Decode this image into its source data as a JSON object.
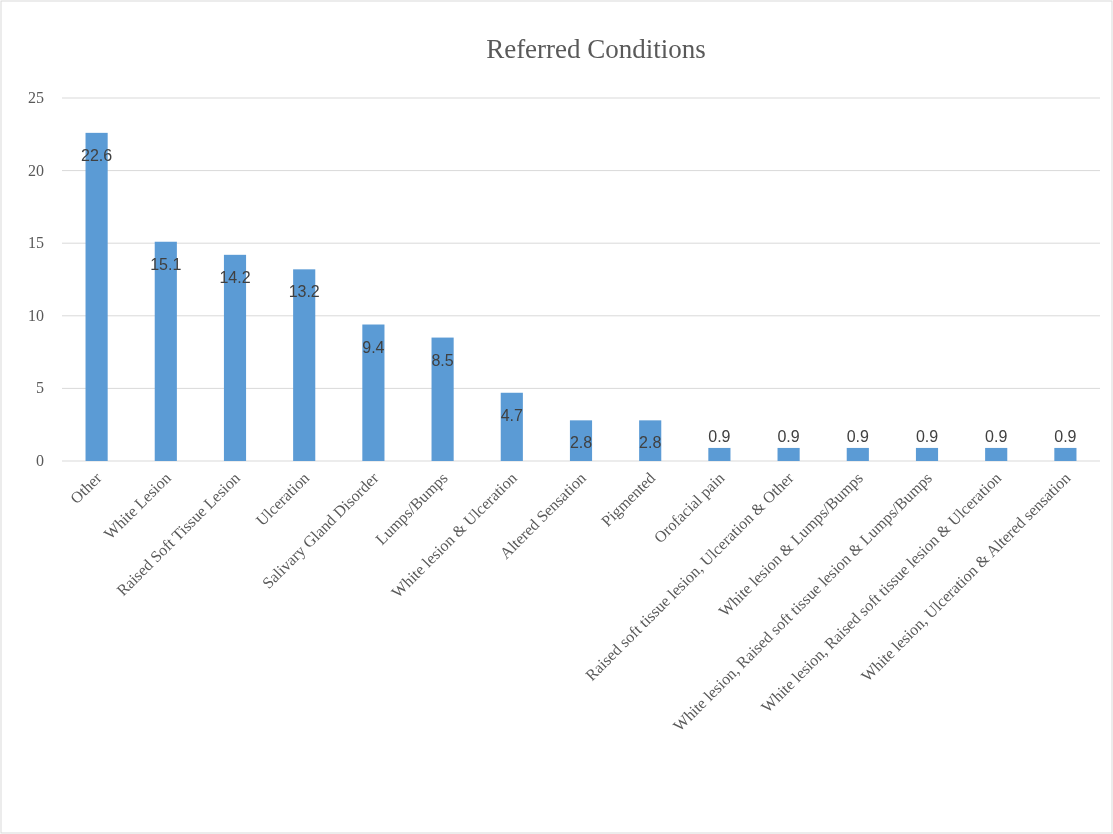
{
  "chart_data": {
    "type": "bar",
    "title": "Referred Conditions",
    "categories": [
      "Other",
      "White Lesion",
      "Raised Soft Tissue Lesion",
      "Ulceration",
      "Salivary Gland Disorder",
      "Lumps/Bumps",
      "White lesion & Ulceration",
      "Altered Sensation",
      "Pigmented",
      "Orofacial pain",
      "Raised soft tissue lesion, Ulceration & Other",
      "White lesion & Lumps/Bumps",
      "White lesion, Raised soft tissue lesion & Lumps/Bumps",
      "White lesion, Raised soft tissue lesion & Ulceration",
      "White lesion, Ulceration & Altered sensation"
    ],
    "values": [
      22.6,
      15.1,
      14.2,
      13.2,
      9.4,
      8.5,
      4.7,
      2.8,
      2.8,
      0.9,
      0.9,
      0.9,
      0.9,
      0.9,
      0.9
    ],
    "color": "#5b9bd5",
    "ylim": [
      0,
      25
    ],
    "yticks": [
      0,
      5,
      10,
      15,
      20,
      25
    ],
    "grid": true,
    "data_labels": true
  }
}
